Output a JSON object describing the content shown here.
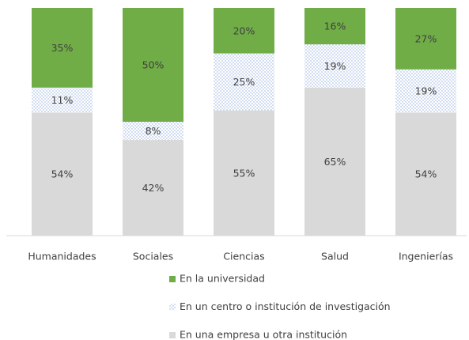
{
  "chart_data": {
    "type": "stacked_bar",
    "categories": [
      "Humanidades",
      "Sociales",
      "Ciencias",
      "Salud",
      "Ingenierías"
    ],
    "series": [
      {
        "name": "En la universidad",
        "color": "#70ad47",
        "values": [
          35,
          50,
          20,
          16,
          27
        ],
        "value_labels": [
          "35%",
          "50%",
          "20%",
          "16%",
          "27%"
        ]
      },
      {
        "name": "En un centro o institución de investigación",
        "color": "#8faadc",
        "pattern": "dotted",
        "values": [
          11,
          8,
          25,
          19,
          19
        ],
        "value_labels": [
          "11%",
          "8%",
          "25%",
          "19%",
          "19%"
        ]
      },
      {
        "name": "En una empresa u otra institución",
        "color": "#d9d9d9",
        "values": [
          54,
          42,
          55,
          65,
          54
        ],
        "value_labels": [
          "54%",
          "42%",
          "55%",
          "65%",
          "54%"
        ]
      }
    ],
    "ylim": [
      0,
      100
    ]
  }
}
